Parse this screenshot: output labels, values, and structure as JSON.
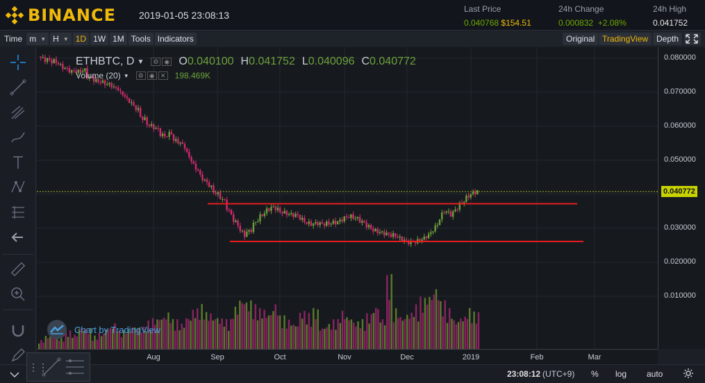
{
  "header": {
    "brand": "BINANCE",
    "datetime": "2019-01-05 23:08:13",
    "last_price_label": "Last Price",
    "last_price": "0.040768",
    "last_price_usd": "$154.51",
    "change_label": "24h Change",
    "change_abs": "0.000832",
    "change_pct": "+2.08%",
    "high_label": "24h High",
    "high_value": "0.041752"
  },
  "toolbar": {
    "time": "Time",
    "minutes": "m",
    "hours": "H",
    "d1": "1D",
    "w1": "1W",
    "m1": "1M",
    "tools": "Tools",
    "indicators": "Indicators",
    "original": "Original",
    "tradingview": "TradingView",
    "depth": "Depth"
  },
  "legend": {
    "symbol": "ETHBTC, D",
    "o_label": "O",
    "o_value": "0.040100",
    "h_label": "H",
    "h_value": "0.041752",
    "l_label": "L",
    "l_value": "0.040096",
    "c_label": "C",
    "c_value": "0.040772",
    "volume_label": "Volume (20)",
    "volume_value": "198.469K"
  },
  "watermark": "Chart by TradingView",
  "bottom": {
    "time": "23:08:12",
    "tz": "(UTC+9)",
    "percent": "%",
    "log": "log",
    "auto": "auto"
  },
  "chart_data": {
    "type": "candlestick",
    "colors": {
      "up": "#6ea13a",
      "down": "#d4286e",
      "support": "#e81c1c"
    },
    "y_range": [
      0.0,
      0.082
    ],
    "y_ticks": [
      "0.080000",
      "0.070000",
      "0.060000",
      "0.050000",
      "0.040000",
      "0.030000",
      "0.020000",
      "0.010000"
    ],
    "x_ticks": [
      "Aug",
      "Sep",
      "Oct",
      "Nov",
      "Dec",
      "2019",
      "Feb",
      "Mar"
    ],
    "current_price": "0.040772",
    "resistance_level": 0.0372,
    "support_level": 0.0261,
    "price_path": [
      [
        0.0805,
        0.0795
      ],
      [
        0.08,
        0.079
      ],
      [
        0.0795,
        0.0785
      ],
      [
        0.078,
        0.077
      ],
      [
        0.077,
        0.076
      ],
      [
        0.0765,
        0.076
      ],
      [
        0.076,
        0.0765
      ],
      [
        0.075,
        0.074
      ],
      [
        0.074,
        0.073
      ],
      [
        0.0735,
        0.0725
      ],
      [
        0.0725,
        0.072
      ],
      [
        0.0715,
        0.071
      ],
      [
        0.07,
        0.069
      ],
      [
        0.068,
        0.067
      ],
      [
        0.066,
        0.065
      ],
      [
        0.063,
        0.062
      ],
      [
        0.061,
        0.06
      ],
      [
        0.06,
        0.059
      ],
      [
        0.058,
        0.057
      ],
      [
        0.057,
        0.058
      ],
      [
        0.056,
        0.0555
      ],
      [
        0.0555,
        0.054
      ],
      [
        0.053,
        0.05
      ],
      [
        0.049,
        0.047
      ],
      [
        0.046,
        0.044
      ],
      [
        0.044,
        0.042
      ],
      [
        0.041,
        0.04
      ],
      [
        0.0395,
        0.038
      ],
      [
        0.037,
        0.034
      ],
      [
        0.033,
        0.031
      ],
      [
        0.03,
        0.028
      ],
      [
        0.0285,
        0.0295
      ],
      [
        0.0305,
        0.0325
      ],
      [
        0.033,
        0.0345
      ],
      [
        0.035,
        0.036
      ],
      [
        0.0365,
        0.0355
      ],
      [
        0.035,
        0.0345
      ],
      [
        0.0345,
        0.034
      ],
      [
        0.034,
        0.0338
      ],
      [
        0.0335,
        0.032
      ],
      [
        0.0318,
        0.0312
      ],
      [
        0.0312,
        0.0315
      ],
      [
        0.0314,
        0.0312
      ],
      [
        0.0313,
        0.0315
      ],
      [
        0.0316,
        0.0318
      ],
      [
        0.0318,
        0.033
      ],
      [
        0.0332,
        0.0335
      ],
      [
        0.0334,
        0.0328
      ],
      [
        0.0326,
        0.0315
      ],
      [
        0.0312,
        0.03
      ],
      [
        0.0296,
        0.029
      ],
      [
        0.029,
        0.0285
      ],
      [
        0.0285,
        0.028
      ],
      [
        0.0282,
        0.0275
      ],
      [
        0.0272,
        0.0265
      ],
      [
        0.0262,
        0.0258
      ],
      [
        0.0258,
        0.0262
      ],
      [
        0.0264,
        0.027
      ],
      [
        0.0272,
        0.0285
      ],
      [
        0.029,
        0.031
      ],
      [
        0.032,
        0.035
      ],
      [
        0.0355,
        0.034
      ],
      [
        0.034,
        0.036
      ],
      [
        0.0365,
        0.038
      ],
      [
        0.0385,
        0.04
      ],
      [
        0.0401,
        0.0408
      ]
    ],
    "volume_levels": [
      0.12,
      0.18,
      0.22,
      0.15,
      0.25,
      0.2,
      0.3,
      0.28,
      0.18,
      0.22,
      0.3,
      0.35,
      0.25,
      0.28,
      0.32,
      0.3,
      0.38,
      0.42,
      0.45,
      0.5,
      0.4,
      0.35,
      0.45,
      0.55,
      0.6,
      0.5,
      0.45,
      0.42,
      0.4,
      0.58,
      0.7,
      0.66,
      0.6,
      0.55,
      0.5,
      0.62,
      0.45,
      0.4,
      0.35,
      0.52,
      0.48,
      0.55,
      0.3,
      0.35,
      0.4,
      0.52,
      0.45,
      0.38,
      0.4,
      0.48,
      0.6,
      0.42,
      1.0,
      0.55,
      0.45,
      0.5,
      0.6,
      0.7,
      0.75,
      0.85,
      0.65,
      0.55,
      0.4,
      0.45,
      0.55,
      0.5
    ]
  }
}
